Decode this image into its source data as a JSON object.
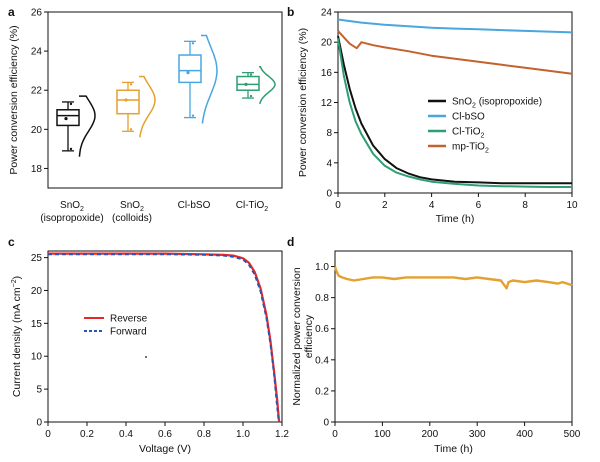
{
  "panels": {
    "a": {
      "letter": "a"
    },
    "b": {
      "letter": "b"
    },
    "c": {
      "letter": "c"
    },
    "d": {
      "letter": "d"
    }
  },
  "chart_data": [
    {
      "panel": "a",
      "type": "box",
      "ylabel": "Power conversion efficiency (%)",
      "ylim": [
        17,
        26
      ],
      "yticks": [
        18,
        20,
        22,
        24,
        26
      ],
      "categories": [
        {
          "line1": "SnO",
          "sub1": "2",
          "line1b": "",
          "line2": "(isopropoxide)",
          "line2sub": "",
          "line2b": ""
        },
        {
          "line1": "SnO",
          "sub1": "2",
          "line1b": "",
          "line2": "(colloids)",
          "line2sub": "",
          "line2b": ""
        },
        {
          "line1": "Cl-bSO",
          "sub1": "",
          "line1b": "",
          "line2": "",
          "line2sub": "",
          "line2b": ""
        },
        {
          "line1": "Cl-TiO",
          "sub1": "2",
          "line1b": "",
          "line2": "",
          "line2sub": "",
          "line2b": ""
        }
      ],
      "boxes": [
        {
          "color": "#111111",
          "min": 18.9,
          "q1": 20.2,
          "median": 20.7,
          "mean": 20.55,
          "q3": 21.0,
          "max": 21.4,
          "points": [
            19.0,
            21.3
          ]
        },
        {
          "color": "#E3A12F",
          "min": 19.9,
          "q1": 20.8,
          "median": 21.5,
          "mean": 21.5,
          "q3": 22.0,
          "max": 22.4,
          "points": [
            20.0,
            22.3
          ]
        },
        {
          "color": "#4AA6DF",
          "min": 20.6,
          "q1": 22.4,
          "median": 23.0,
          "mean": 22.9,
          "q3": 23.8,
          "max": 24.5,
          "points": [
            20.7,
            24.4
          ]
        },
        {
          "color": "#2E9E73",
          "min": 21.6,
          "q1": 22.0,
          "median": 22.3,
          "mean": 22.3,
          "q3": 22.7,
          "max": 22.9,
          "points": [
            21.7,
            22.8
          ]
        }
      ]
    },
    {
      "panel": "b",
      "type": "line",
      "xlabel": "Time (h)",
      "ylabel": "Power conversion efficiency (%)",
      "xlim": [
        0,
        10
      ],
      "ylim": [
        0,
        24
      ],
      "xticks": [
        0,
        2,
        4,
        6,
        8,
        10
      ],
      "yticks": [
        0,
        4,
        8,
        12,
        16,
        20,
        24
      ],
      "legend_position": "right",
      "series": [
        {
          "name_main": "SnO",
          "name_sub": "2",
          "name_rest": " (isopropoxide)",
          "color": "#111111",
          "x": [
            0,
            0.25,
            0.5,
            0.75,
            1,
            1.5,
            2,
            2.5,
            3,
            3.5,
            4,
            5,
            6,
            7,
            8,
            9,
            10
          ],
          "y": [
            20.8,
            17.0,
            13.8,
            11.2,
            9.2,
            6.3,
            4.5,
            3.3,
            2.6,
            2.1,
            1.8,
            1.5,
            1.4,
            1.3,
            1.3,
            1.3,
            1.3
          ]
        },
        {
          "name_main": "Cl-bSO",
          "name_sub": "",
          "name_rest": "",
          "color": "#4AA6DF",
          "x": [
            0,
            1,
            2,
            3,
            4,
            5,
            6,
            7,
            8,
            9,
            10
          ],
          "y": [
            23.0,
            22.6,
            22.3,
            22.1,
            21.9,
            21.8,
            21.7,
            21.6,
            21.5,
            21.4,
            21.3
          ]
        },
        {
          "name_main": "Cl-TiO",
          "name_sub": "2",
          "name_rest": "",
          "color": "#2E9E73",
          "x": [
            0,
            0.25,
            0.5,
            0.75,
            1,
            1.5,
            2,
            2.5,
            3,
            3.5,
            4,
            5,
            6,
            7,
            8,
            9,
            10
          ],
          "y": [
            20.5,
            15.5,
            12.0,
            9.5,
            7.8,
            5.2,
            3.6,
            2.7,
            2.2,
            1.8,
            1.5,
            1.2,
            1.0,
            0.9,
            0.85,
            0.8,
            0.8
          ]
        },
        {
          "name_main": "mp-TiO",
          "name_sub": "2",
          "name_rest": "",
          "color": "#C4622D",
          "x": [
            0,
            0.5,
            0.8,
            1.0,
            1.5,
            2,
            3,
            4,
            5,
            6,
            7,
            8,
            9,
            10
          ],
          "y": [
            21.5,
            19.8,
            19.2,
            20.0,
            19.6,
            19.3,
            18.8,
            18.2,
            17.8,
            17.4,
            17.0,
            16.6,
            16.2,
            15.8
          ]
        }
      ]
    },
    {
      "panel": "c",
      "type": "line",
      "xlabel": "Voltage (V)",
      "ylabel_main": "Current density (mA cm",
      "ylabel_sup": "−2",
      "ylabel_end": ")",
      "xlim": [
        0,
        1.2
      ],
      "ylim": [
        0,
        26
      ],
      "xticks": [
        "0",
        "0.2",
        "0.4",
        "0.6",
        "0.8",
        "1.0",
        "1.2"
      ],
      "yticks": [
        0,
        5,
        10,
        15,
        20,
        25
      ],
      "legend_position": "center-left",
      "series": [
        {
          "name": "Reverse",
          "color": "#E8262A",
          "dash": "",
          "x": [
            0,
            0.2,
            0.4,
            0.6,
            0.8,
            0.9,
            0.95,
            1.0,
            1.03,
            1.06,
            1.09,
            1.12,
            1.14,
            1.16,
            1.175,
            1.185
          ],
          "y": [
            25.6,
            25.6,
            25.6,
            25.6,
            25.5,
            25.4,
            25.3,
            24.9,
            24.2,
            22.8,
            20.3,
            16.3,
            12.5,
            7.5,
            3.5,
            0
          ]
        },
        {
          "name": "Forward",
          "color": "#2456B5",
          "dash": "4 3",
          "x": [
            0,
            0.2,
            0.4,
            0.6,
            0.8,
            0.9,
            0.95,
            1.0,
            1.03,
            1.06,
            1.09,
            1.12,
            1.14,
            1.16,
            1.172,
            1.183
          ],
          "y": [
            25.5,
            25.5,
            25.5,
            25.5,
            25.4,
            25.3,
            25.1,
            24.7,
            23.9,
            22.4,
            19.8,
            15.8,
            12.0,
            7.0,
            3.2,
            0
          ]
        }
      ]
    },
    {
      "panel": "d",
      "type": "line",
      "xlabel": "Time (h)",
      "ylabel_line1": "Normalized power conversion",
      "ylabel_line2": "efficiency",
      "xlim": [
        0,
        500
      ],
      "ylim": [
        0,
        1.1
      ],
      "xticks": [
        0,
        100,
        200,
        300,
        400,
        500
      ],
      "yticks": [
        "0",
        "0.2",
        "0.4",
        "0.6",
        "0.8",
        "1.0"
      ],
      "series": [
        {
          "name": "",
          "color": "#E3A12F",
          "x": [
            0,
            3,
            8,
            15,
            25,
            40,
            60,
            80,
            100,
            125,
            150,
            175,
            200,
            225,
            250,
            275,
            300,
            325,
            350,
            362,
            366,
            375,
            400,
            425,
            450,
            470,
            480,
            490,
            500
          ],
          "y": [
            1.0,
            0.97,
            0.94,
            0.93,
            0.92,
            0.91,
            0.92,
            0.93,
            0.93,
            0.92,
            0.93,
            0.93,
            0.93,
            0.93,
            0.93,
            0.92,
            0.93,
            0.92,
            0.91,
            0.86,
            0.9,
            0.91,
            0.9,
            0.91,
            0.9,
            0.89,
            0.9,
            0.89,
            0.88
          ]
        }
      ]
    }
  ]
}
